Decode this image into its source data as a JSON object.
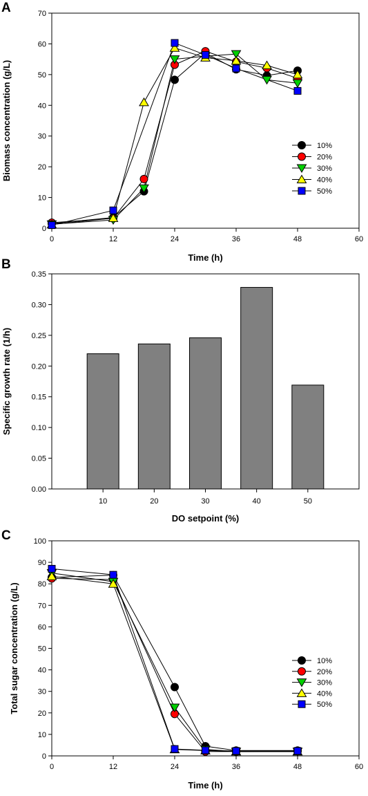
{
  "figure": {
    "panel_letters": [
      "A",
      "B",
      "C"
    ]
  },
  "chart_data": [
    {
      "panel": "A",
      "type": "line",
      "xlabel": "Time (h)",
      "ylabel": "Biomass concentration (g/L)",
      "xlim": [
        0,
        60
      ],
      "ylim": [
        0,
        70
      ],
      "xticks": [
        0,
        12,
        24,
        36,
        48,
        60
      ],
      "yticks": [
        0,
        10,
        20,
        30,
        40,
        50,
        60,
        70
      ],
      "legend_position": "right-middle",
      "series": [
        {
          "name": "10%",
          "color": "#000000",
          "marker": "circle",
          "x": [
            0,
            12,
            18,
            24,
            30,
            36,
            42,
            48
          ],
          "y": [
            1.5,
            3.5,
            12,
            48.3,
            57,
            51.7,
            49.7,
            51.3
          ]
        },
        {
          "name": "20%",
          "color": "#ff0000",
          "marker": "circle",
          "x": [
            0,
            12,
            18,
            24,
            30,
            36,
            42,
            48
          ],
          "y": [
            1.8,
            3.2,
            16,
            53.2,
            57.6,
            54.2,
            52.1,
            48.8
          ]
        },
        {
          "name": "30%",
          "color": "#00d000",
          "marker": "triangle-down",
          "x": [
            0,
            12,
            18,
            24,
            30,
            36,
            42,
            48
          ],
          "y": [
            1.3,
            2.7,
            13,
            55,
            56,
            56.7,
            48.3,
            47.2
          ]
        },
        {
          "name": "40%",
          "color": "#ffff00",
          "marker": "triangle-up",
          "x": [
            0,
            12,
            18,
            24,
            30,
            36,
            42,
            48
          ],
          "y": [
            1.2,
            3.3,
            41,
            58.7,
            55.5,
            54.5,
            53,
            50
          ]
        },
        {
          "name": "50%",
          "color": "#0000ff",
          "marker": "square",
          "x": [
            0,
            12,
            24,
            30,
            36,
            48
          ],
          "y": [
            1,
            5.8,
            60.3,
            56.4,
            52,
            44.7
          ]
        }
      ]
    },
    {
      "panel": "B",
      "type": "bar",
      "xlabel": "DO setpoint (%)",
      "ylabel": "Specific growth rate (1/h)",
      "ylim": [
        0,
        0.35
      ],
      "yticks": [
        "0.00",
        "0.05",
        "0.10",
        "0.15",
        "0.20",
        "0.25",
        "0.30",
        "0.35"
      ],
      "categories": [
        "10",
        "20",
        "30",
        "40",
        "50"
      ],
      "values": [
        0.22,
        0.236,
        0.246,
        0.328,
        0.169
      ],
      "bar_color": "#808080"
    },
    {
      "panel": "C",
      "type": "line",
      "xlabel": "Time (h)",
      "ylabel": "Total sugar concentration (g/L)",
      "xlim": [
        0,
        60
      ],
      "ylim": [
        0,
        100
      ],
      "xticks": [
        0,
        12,
        24,
        36,
        48,
        60
      ],
      "yticks": [
        0,
        10,
        20,
        30,
        40,
        50,
        60,
        70,
        80,
        90,
        100
      ],
      "legend_position": "right-middle",
      "series": [
        {
          "name": "10%",
          "color": "#000000",
          "marker": "circle",
          "x": [
            0,
            12,
            24,
            30,
            36,
            48
          ],
          "y": [
            83,
            84,
            32,
            4.5,
            2.5,
            2.5
          ]
        },
        {
          "name": "20%",
          "color": "#ff0000",
          "marker": "circle",
          "x": [
            0,
            12,
            24,
            30,
            36,
            48
          ],
          "y": [
            82.5,
            82,
            19.5,
            2,
            2,
            2.2
          ]
        },
        {
          "name": "30%",
          "color": "#00d000",
          "marker": "triangle-down",
          "x": [
            0,
            12,
            24,
            30,
            36,
            48
          ],
          "y": [
            85,
            81,
            22.5,
            3,
            2,
            2
          ]
        },
        {
          "name": "40%",
          "color": "#ffff00",
          "marker": "triangle-up",
          "x": [
            0,
            12,
            24,
            30,
            36,
            48
          ],
          "y": [
            83.5,
            80,
            3,
            2.5,
            2,
            2
          ]
        },
        {
          "name": "50%",
          "color": "#0000ff",
          "marker": "square",
          "x": [
            0,
            12,
            24,
            30,
            36,
            48
          ],
          "y": [
            87,
            84.2,
            3.2,
            2.6,
            2.3,
            2.3
          ]
        }
      ]
    }
  ]
}
